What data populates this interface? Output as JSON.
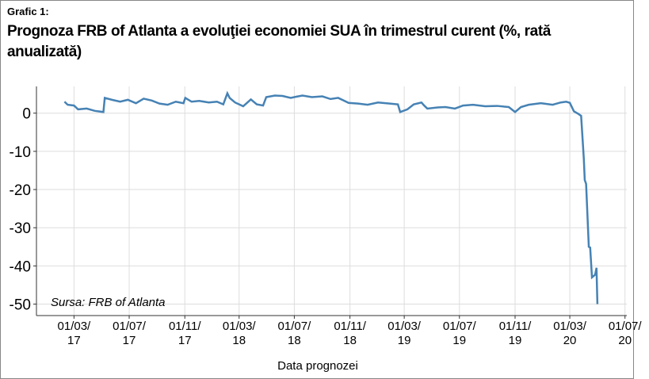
{
  "chart_data": {
    "type": "line",
    "subtitle": "Grafic 1:",
    "title": "Prognoza FRB of Atlanta a evoluţiei economiei SUA în trimestrul curent (%, rată anualizată)",
    "annotation": "Sursa: FRB of Atlanta",
    "x_label": "Data prognozei",
    "color": "#4682b4",
    "grid": true,
    "x": [
      "2017-02-08",
      "2017-02-15",
      "2017-03-01",
      "2017-03-10",
      "2017-03-29",
      "2017-04-16",
      "2017-05-05",
      "2017-05-08",
      "2017-05-24",
      "2017-06-11",
      "2017-06-28",
      "2017-07-16",
      "2017-08-02",
      "2017-08-20",
      "2017-09-06",
      "2017-09-24",
      "2017-10-12",
      "2017-10-29",
      "2017-11-02",
      "2017-11-16",
      "2017-12-03",
      "2017-12-24",
      "2018-01-11",
      "2018-01-25",
      "2018-02-03",
      "2018-02-08",
      "2018-02-20",
      "2018-03-10",
      "2018-03-27",
      "2018-04-09",
      "2018-04-23",
      "2018-04-30",
      "2018-05-19",
      "2018-06-05",
      "2018-06-23",
      "2018-07-05",
      "2018-07-19",
      "2018-08-09",
      "2018-09-01",
      "2018-09-19",
      "2018-10-06",
      "2018-10-29",
      "2018-11-19",
      "2018-12-10",
      "2019-01-02",
      "2019-01-28",
      "2019-02-15",
      "2019-02-20",
      "2019-03-08",
      "2019-03-22",
      "2019-04-08",
      "2019-04-14",
      "2019-04-21",
      "2019-05-14",
      "2019-05-31",
      "2019-06-21",
      "2019-07-09",
      "2019-07-31",
      "2019-08-27",
      "2019-09-22",
      "2019-10-18",
      "2019-11-01",
      "2019-11-14",
      "2019-12-01",
      "2019-12-28",
      "2020-01-23",
      "2020-02-10",
      "2020-02-22",
      "2020-03-01",
      "2020-03-10",
      "2020-03-20",
      "2020-03-26",
      "2020-04-01",
      "2020-04-03",
      "2020-04-06",
      "2020-04-12",
      "2020-04-15",
      "2020-04-19",
      "2020-04-26",
      "2020-04-29",
      "2020-05-01"
    ],
    "values": [
      3.0,
      2.2,
      2.0,
      1.0,
      1.2,
      0.6,
      0.3,
      4.0,
      3.5,
      3.0,
      3.5,
      2.6,
      3.8,
      3.3,
      2.5,
      2.2,
      3.0,
      2.6,
      4.0,
      3.0,
      3.2,
      2.8,
      3.0,
      2.3,
      5.2,
      4.0,
      2.8,
      1.8,
      3.6,
      2.3,
      2.0,
      4.2,
      4.6,
      4.5,
      4.0,
      4.3,
      4.6,
      4.2,
      4.4,
      3.7,
      4.0,
      2.7,
      2.5,
      2.2,
      2.8,
      2.5,
      2.3,
      0.3,
      1.0,
      2.3,
      2.8,
      2.0,
      1.2,
      1.5,
      1.6,
      1.2,
      2.0,
      2.2,
      1.8,
      1.9,
      1.6,
      0.3,
      1.6,
      2.2,
      2.6,
      2.2,
      2.8,
      3.0,
      2.7,
      0.5,
      -0.2,
      -0.7,
      -12,
      -17.5,
      -18.5,
      -35,
      -35.2,
      -43,
      -42.3,
      -40.5,
      -50
    ],
    "xlim": [
      "2016-12-08",
      "2020-07-05"
    ],
    "xticks": [
      {
        "value": "2017-03-01",
        "label": "01/03/\n17"
      },
      {
        "value": "2017-07-01",
        "label": "01/07/\n17"
      },
      {
        "value": "2017-11-01",
        "label": "01/11/\n17"
      },
      {
        "value": "2018-03-01",
        "label": "01/03/\n18"
      },
      {
        "value": "2018-07-01",
        "label": "01/07/\n18"
      },
      {
        "value": "2018-11-01",
        "label": "01/11/\n18"
      },
      {
        "value": "2019-03-01",
        "label": "01/03/\n19"
      },
      {
        "value": "2019-07-01",
        "label": "01/07/\n19"
      },
      {
        "value": "2019-11-01",
        "label": "01/11/\n19"
      },
      {
        "value": "2020-03-01",
        "label": "01/03/\n20"
      },
      {
        "value": "2020-07-01",
        "label": "01/07/\n20"
      }
    ],
    "ylim": [
      -53,
      7
    ],
    "yticks": [
      0,
      -10,
      -20,
      -30,
      -40,
      -50
    ]
  }
}
